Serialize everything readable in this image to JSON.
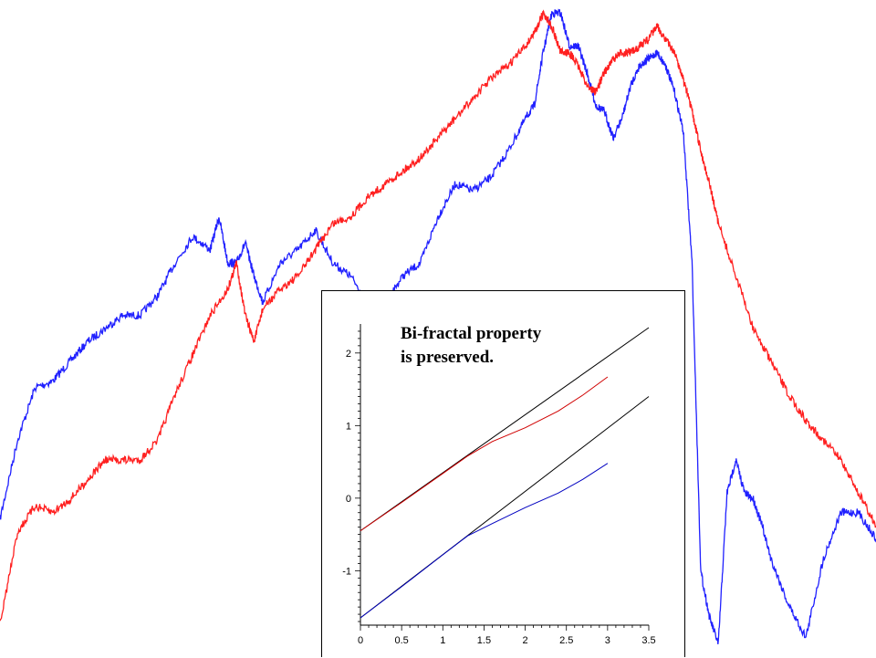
{
  "chart_data": [
    {
      "type": "line",
      "role": "background",
      "grid": false,
      "axes_visible": false,
      "series": [
        {
          "color": "#2020ff",
          "x": [
            0,
            0.02,
            0.04,
            0.06,
            0.08,
            0.1,
            0.12,
            0.14,
            0.16,
            0.18,
            0.2,
            0.22,
            0.24,
            0.25,
            0.26,
            0.27,
            0.28,
            0.29,
            0.3,
            0.32,
            0.34,
            0.36,
            0.38,
            0.4,
            0.42,
            0.44,
            0.46,
            0.48,
            0.5,
            0.52,
            0.54,
            0.56,
            0.58,
            0.6,
            0.61,
            0.62,
            0.63,
            0.64,
            0.65,
            0.66,
            0.67,
            0.68,
            0.69,
            0.7,
            0.71,
            0.72,
            0.73,
            0.74,
            0.75,
            0.76,
            0.77,
            0.78,
            0.79,
            0.8,
            0.81,
            0.82,
            0.83,
            0.84,
            0.85,
            0.86,
            0.87,
            0.88,
            0.9,
            0.92,
            0.94,
            0.96,
            0.98,
            1.0
          ],
          "y": [
            0.21,
            0.33,
            0.41,
            0.42,
            0.45,
            0.48,
            0.5,
            0.52,
            0.52,
            0.55,
            0.6,
            0.64,
            0.62,
            0.67,
            0.6,
            0.6,
            0.63,
            0.58,
            0.54,
            0.6,
            0.62,
            0.65,
            0.6,
            0.58,
            0.54,
            0.54,
            0.58,
            0.6,
            0.67,
            0.72,
            0.71,
            0.73,
            0.77,
            0.82,
            0.84,
            0.92,
            0.98,
            0.98,
            0.93,
            0.93,
            0.89,
            0.84,
            0.83,
            0.79,
            0.82,
            0.87,
            0.9,
            0.91,
            0.92,
            0.9,
            0.86,
            0.8,
            0.6,
            0.13,
            0.06,
            0.02,
            0.25,
            0.3,
            0.25,
            0.24,
            0.2,
            0.15,
            0.08,
            0.03,
            0.15,
            0.22,
            0.22,
            0.18
          ]
        },
        {
          "color": "#ff2020",
          "x": [
            0,
            0.02,
            0.04,
            0.06,
            0.08,
            0.1,
            0.12,
            0.14,
            0.16,
            0.18,
            0.2,
            0.22,
            0.24,
            0.26,
            0.27,
            0.28,
            0.29,
            0.3,
            0.32,
            0.34,
            0.36,
            0.38,
            0.4,
            0.42,
            0.44,
            0.46,
            0.48,
            0.5,
            0.52,
            0.54,
            0.56,
            0.58,
            0.6,
            0.61,
            0.62,
            0.63,
            0.64,
            0.65,
            0.66,
            0.67,
            0.68,
            0.69,
            0.7,
            0.71,
            0.72,
            0.73,
            0.74,
            0.75,
            0.76,
            0.77,
            0.78,
            0.79,
            0.8,
            0.81,
            0.82,
            0.84,
            0.86,
            0.88,
            0.9,
            0.92,
            0.94,
            0.96,
            0.98,
            1.0
          ],
          "y": [
            0.05,
            0.19,
            0.23,
            0.22,
            0.24,
            0.27,
            0.3,
            0.3,
            0.3,
            0.33,
            0.4,
            0.46,
            0.52,
            0.56,
            0.6,
            0.52,
            0.48,
            0.53,
            0.56,
            0.58,
            0.62,
            0.66,
            0.67,
            0.7,
            0.72,
            0.74,
            0.76,
            0.79,
            0.82,
            0.85,
            0.88,
            0.9,
            0.93,
            0.95,
            0.98,
            0.96,
            0.92,
            0.92,
            0.9,
            0.87,
            0.86,
            0.89,
            0.91,
            0.92,
            0.92,
            0.93,
            0.94,
            0.96,
            0.94,
            0.92,
            0.88,
            0.83,
            0.77,
            0.72,
            0.66,
            0.58,
            0.5,
            0.45,
            0.4,
            0.36,
            0.33,
            0.3,
            0.25,
            0.2
          ]
        }
      ]
    },
    {
      "type": "line",
      "role": "inset",
      "annotation": "Bi-fractal property\nis preserved.",
      "annotation_lines": [
        "Bi-fractal property",
        "is preserved."
      ],
      "xlim": [
        0,
        3.5
      ],
      "ylim": [
        -1.75,
        2.4
      ],
      "xtick_labels": [
        "0",
        "0.5",
        "1",
        "1.5",
        "2",
        "2.5",
        "3",
        "3.5"
      ],
      "xtick_values": [
        0,
        0.5,
        1,
        1.5,
        2,
        2.5,
        3,
        3.5
      ],
      "ytick_labels": [
        "-1",
        "0",
        "1",
        "2"
      ],
      "ytick_values": [
        -1,
        0,
        1,
        2
      ],
      "grid": false,
      "series": [
        {
          "color": "#000000",
          "x": [
            0,
            3.5
          ],
          "y": [
            -0.45,
            2.35
          ]
        },
        {
          "color": "#000000",
          "x": [
            0,
            3.5
          ],
          "y": [
            -1.65,
            1.4
          ]
        },
        {
          "color": "#d00000",
          "x": [
            0,
            0.5,
            1,
            1.3,
            1.6,
            2,
            2.4,
            2.7,
            3.0
          ],
          "y": [
            -0.45,
            -0.06,
            0.34,
            0.58,
            0.78,
            0.97,
            1.2,
            1.42,
            1.67
          ]
        },
        {
          "color": "#0000c0",
          "x": [
            0,
            0.5,
            1,
            1.3,
            1.6,
            2,
            2.4,
            2.7,
            3.0
          ],
          "y": [
            -1.65,
            -1.22,
            -0.78,
            -0.52,
            -0.35,
            -0.13,
            0.07,
            0.26,
            0.48
          ]
        }
      ]
    }
  ]
}
